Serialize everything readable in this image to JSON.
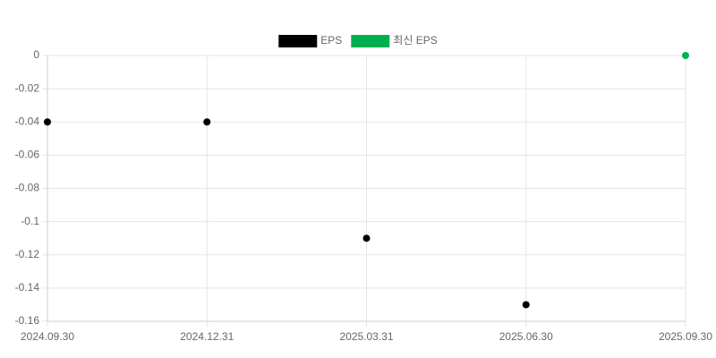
{
  "chart_data": {
    "type": "scatter",
    "categories": [
      "2024.09.30",
      "2024.12.31",
      "2025.03.31",
      "2025.06.30",
      "2025.09.30"
    ],
    "series": [
      {
        "name": "EPS",
        "color": "#000000",
        "values": [
          -0.04,
          -0.04,
          -0.11,
          -0.15,
          null
        ]
      },
      {
        "name": "최신 EPS",
        "color": "#00b050",
        "values": [
          null,
          null,
          null,
          null,
          0
        ]
      }
    ],
    "ylim": [
      -0.16,
      0
    ],
    "yticks": [
      0,
      -0.02,
      -0.04,
      -0.06,
      -0.08,
      -0.1,
      -0.12,
      -0.14,
      -0.16
    ],
    "grid": true,
    "legend": "top"
  }
}
